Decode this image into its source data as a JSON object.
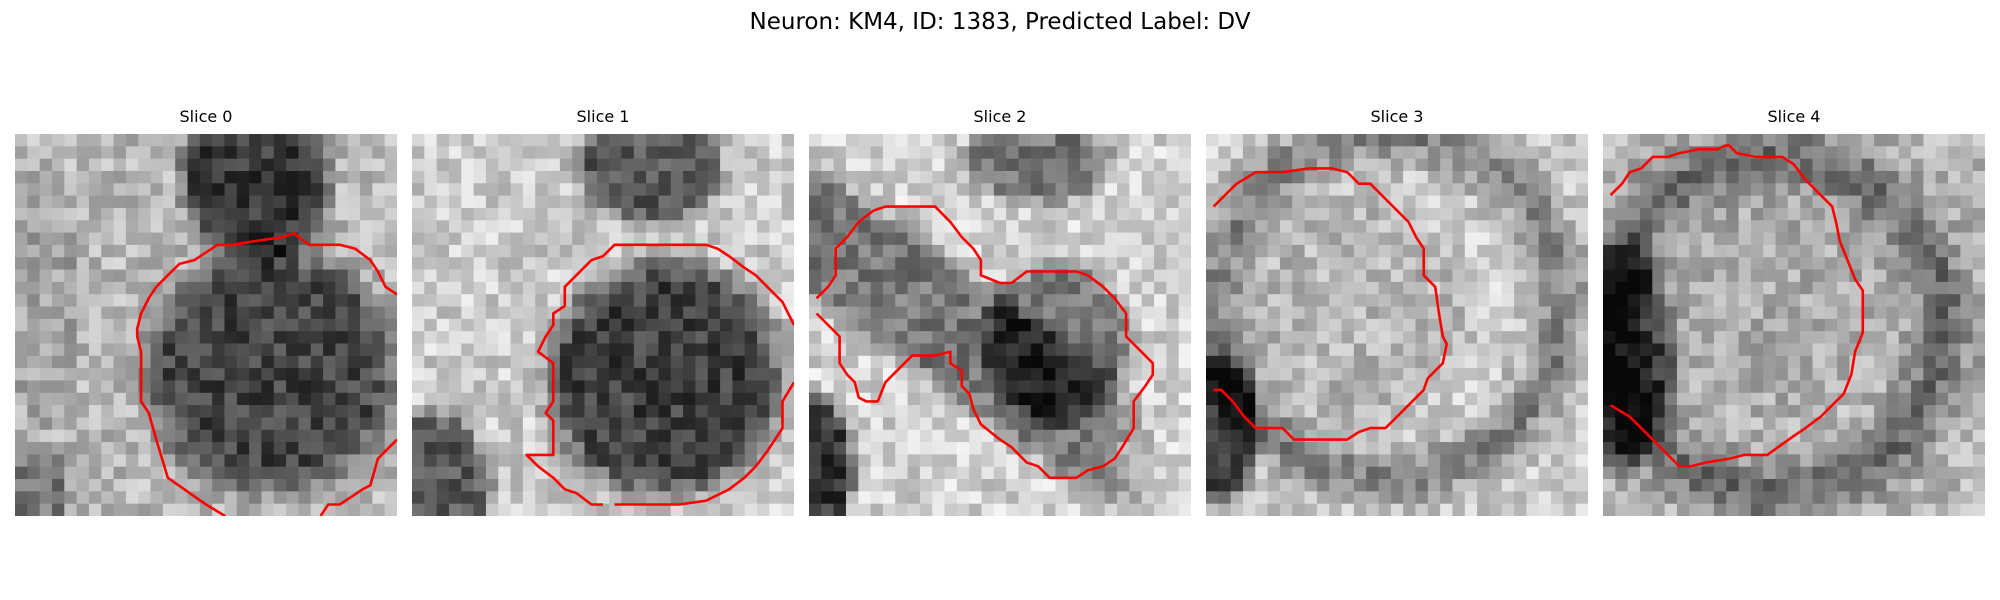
{
  "figure": {
    "title": "Neuron: KM4, ID: 1383, Predicted Label: DV"
  },
  "panels": [
    {
      "title": "Slice 0"
    },
    {
      "title": "Slice 1"
    },
    {
      "title": "Slice 2"
    },
    {
      "title": "Slice 3"
    },
    {
      "title": "Slice 4"
    }
  ],
  "colors": {
    "contour": "#ff0000",
    "background": "#ffffff"
  },
  "colormap": "gray"
}
